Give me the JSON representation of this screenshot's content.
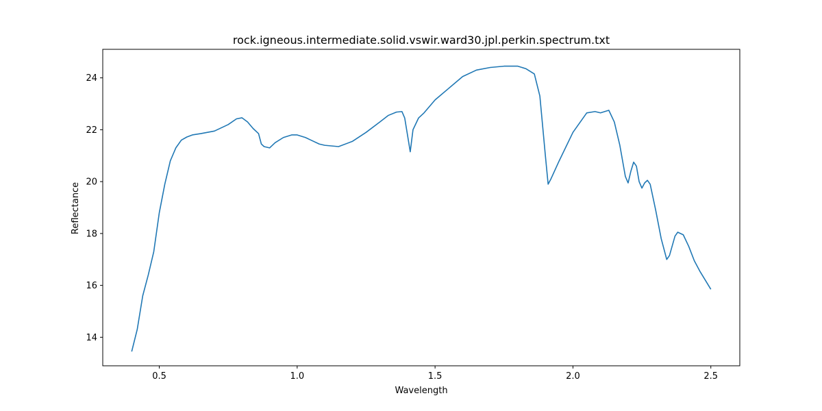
{
  "chart_data": {
    "type": "line",
    "title": "rock.igneous.intermediate.solid.vswir.ward30.jpl.perkin.spectrum.txt",
    "xlabel": "Wavelength",
    "ylabel": "Reflectance",
    "xlim": [
      0.295,
      2.605
    ],
    "ylim": [
      12.9,
      25.1
    ],
    "xticks": [
      "0.5",
      "1.0",
      "1.5",
      "2.0",
      "2.5"
    ],
    "xtick_values": [
      0.5,
      1.0,
      1.5,
      2.0,
      2.5
    ],
    "yticks": [
      "14",
      "16",
      "18",
      "20",
      "22",
      "24"
    ],
    "ytick_values": [
      14,
      16,
      18,
      20,
      22,
      24
    ],
    "grid": false,
    "line_color": "#1f77b4",
    "series": [
      {
        "x": [
          0.4,
          0.42,
          0.44,
          0.46,
          0.48,
          0.5,
          0.52,
          0.54,
          0.56,
          0.58,
          0.6,
          0.62,
          0.65,
          0.7,
          0.75,
          0.78,
          0.8,
          0.82,
          0.84,
          0.86,
          0.87,
          0.88,
          0.9,
          0.92,
          0.95,
          0.98,
          1.0,
          1.03,
          1.05,
          1.08,
          1.1,
          1.15,
          1.2,
          1.25,
          1.3,
          1.33,
          1.36,
          1.38,
          1.39,
          1.4,
          1.41,
          1.42,
          1.44,
          1.46,
          1.5,
          1.55,
          1.6,
          1.65,
          1.7,
          1.75,
          1.8,
          1.83,
          1.86,
          1.88,
          1.9,
          1.91,
          1.92,
          1.95,
          2.0,
          2.05,
          2.08,
          2.1,
          2.13,
          2.15,
          2.17,
          2.19,
          2.2,
          2.21,
          2.22,
          2.23,
          2.24,
          2.25,
          2.26,
          2.27,
          2.28,
          2.3,
          2.32,
          2.34,
          2.35,
          2.37,
          2.38,
          2.4,
          2.42,
          2.44,
          2.46,
          2.48,
          2.5
        ],
        "y": [
          13.45,
          14.3,
          15.6,
          16.4,
          17.3,
          18.8,
          19.9,
          20.8,
          21.3,
          21.6,
          21.72,
          21.8,
          21.85,
          21.95,
          22.2,
          22.42,
          22.46,
          22.3,
          22.05,
          21.85,
          21.45,
          21.35,
          21.3,
          21.5,
          21.7,
          21.8,
          21.8,
          21.7,
          21.6,
          21.45,
          21.4,
          21.35,
          21.55,
          21.9,
          22.3,
          22.55,
          22.68,
          22.7,
          22.45,
          21.8,
          21.15,
          22.0,
          22.45,
          22.65,
          23.15,
          23.6,
          24.05,
          24.3,
          24.4,
          24.45,
          24.45,
          24.35,
          24.15,
          23.3,
          21.0,
          19.9,
          20.1,
          20.8,
          21.9,
          22.65,
          22.7,
          22.65,
          22.75,
          22.3,
          21.4,
          20.2,
          19.95,
          20.4,
          20.75,
          20.6,
          20.0,
          19.75,
          19.95,
          20.05,
          19.9,
          18.9,
          17.8,
          17.0,
          17.15,
          17.9,
          18.05,
          17.95,
          17.5,
          16.95,
          16.55,
          16.2,
          15.85
        ]
      }
    ]
  }
}
